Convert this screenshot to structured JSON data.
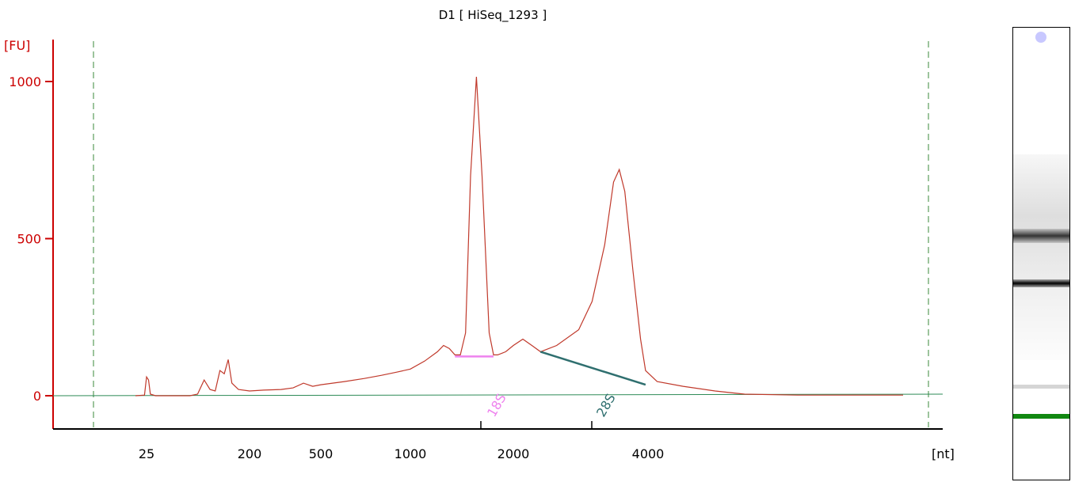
{
  "chart_data": {
    "type": "line",
    "title": "D1  [ HiSeq_1293 ]",
    "ylabel": "[FU]",
    "xlabel": "[nt]",
    "ylim": [
      -100,
      1100
    ],
    "y_ticks": [
      0,
      500,
      1000
    ],
    "x_ticks": [
      "25",
      "200",
      "500",
      "1000",
      "2000",
      "4000"
    ],
    "series": [
      {
        "color": "#c0392b",
        "x_scale": "nt",
        "points": [
          [
            20,
            0
          ],
          [
            24,
            2
          ],
          [
            25,
            60
          ],
          [
            26,
            50
          ],
          [
            27,
            5
          ],
          [
            30,
            0
          ],
          [
            60,
            0
          ],
          [
            70,
            5
          ],
          [
            80,
            50
          ],
          [
            90,
            20
          ],
          [
            100,
            15
          ],
          [
            110,
            80
          ],
          [
            120,
            70
          ],
          [
            130,
            115
          ],
          [
            140,
            40
          ],
          [
            160,
            20
          ],
          [
            200,
            15
          ],
          [
            240,
            18
          ],
          [
            300,
            20
          ],
          [
            350,
            25
          ],
          [
            400,
            40
          ],
          [
            450,
            30
          ],
          [
            500,
            35
          ],
          [
            600,
            45
          ],
          [
            700,
            55
          ],
          [
            800,
            65
          ],
          [
            900,
            75
          ],
          [
            1000,
            85
          ],
          [
            1100,
            110
          ],
          [
            1200,
            140
          ],
          [
            1250,
            160
          ],
          [
            1300,
            150
          ],
          [
            1350,
            130
          ],
          [
            1400,
            130
          ],
          [
            1450,
            200
          ],
          [
            1500,
            700
          ],
          [
            1560,
            1015
          ],
          [
            1620,
            700
          ],
          [
            1700,
            200
          ],
          [
            1750,
            130
          ],
          [
            1800,
            130
          ],
          [
            1900,
            140
          ],
          [
            2000,
            160
          ],
          [
            2100,
            180
          ],
          [
            2200,
            160
          ],
          [
            2300,
            140
          ],
          [
            2500,
            160
          ],
          [
            2800,
            210
          ],
          [
            3000,
            300
          ],
          [
            3200,
            480
          ],
          [
            3350,
            680
          ],
          [
            3450,
            720
          ],
          [
            3550,
            650
          ],
          [
            3700,
            400
          ],
          [
            3850,
            180
          ],
          [
            3950,
            80
          ],
          [
            4100,
            45
          ],
          [
            4400,
            30
          ],
          [
            4800,
            15
          ],
          [
            5200,
            5
          ],
          [
            6000,
            2
          ],
          [
            7000,
            2
          ],
          [
            8000,
            2
          ]
        ]
      }
    ],
    "annotations": [
      {
        "label": "18S",
        "color": "#ee82ee",
        "x_nt": 1560
      },
      {
        "label": "28S",
        "color": "#2f6f6f",
        "x_nt": 3450
      }
    ]
  },
  "gel": {
    "bands_rel": [
      0.6,
      0.38,
      0.08
    ]
  }
}
